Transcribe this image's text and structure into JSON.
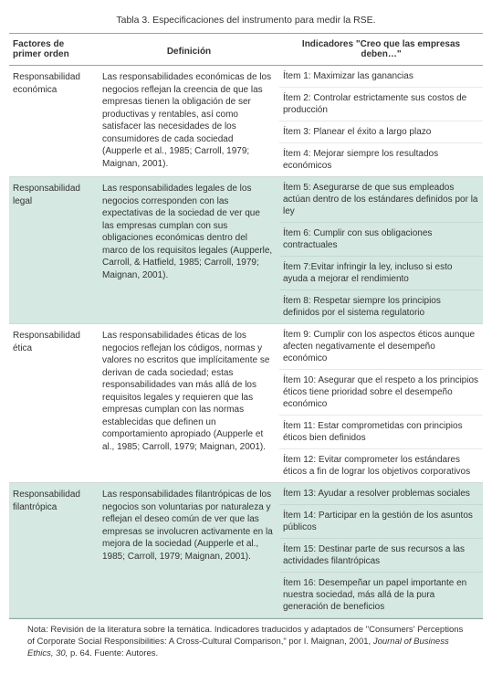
{
  "caption": "Tabla 3. Especificaciones del instrumento para medir la RSE.",
  "headers": {
    "factor": "Factores de primer orden",
    "definition": "Definición",
    "items": "Indicadores \"Creo que las empresas deben…\""
  },
  "rows": [
    {
      "factor": "Responsabilidad económica",
      "definition": "Las responsabilidades económicas de los negocios reflejan la creencia de que las empresas tienen la obligación de ser productivas y rentables, así como satisfacer las necesidades de los consumidores de cada sociedad (Aupperle et al., 1985; Carroll, 1979; Maignan, 2001).",
      "items": [
        "Ítem 1: Maximizar las ganancias",
        "Ítem 2: Controlar estrictamente sus costos de producción",
        "Ítem 3: Planear el éxito a largo plazo",
        "Ítem 4: Mejorar siempre los resultados económicos"
      ],
      "alt": false
    },
    {
      "factor": "Responsabilidad legal",
      "definition": "Las responsabilidades legales de los negocios corresponden con las expectativas de la sociedad de ver que las empresas cumplan con sus obligaciones económicas dentro del marco de los requisitos legales (Aupperle, Carroll, & Hatfield, 1985; Carroll, 1979; Maignan, 2001).",
      "items": [
        "Ítem 5: Asegurarse de que sus empleados actúan dentro de los estándares definidos por la ley",
        "Ítem 6: Cumplir con sus obligaciones contractuales",
        "Ítem 7:Evitar infringir la ley, incluso si esto ayuda a mejorar el rendimiento",
        "Ítem 8: Respetar siempre los principios definidos por el sistema regulatorio"
      ],
      "alt": true
    },
    {
      "factor": "Responsabilidad ética",
      "definition": "Las responsabilidades éticas de los negocios reflejan los códigos, normas y valores no escritos que implícitamente se derivan de cada sociedad; estas responsabilidades van más allá de los requisitos legales y requieren que las empresas cumplan con las normas establecidas que definen un comportamiento apropiado (Aupperle et al., 1985; Carroll, 1979; Maignan, 2001).",
      "items": [
        "Ítem 9: Cumplir con los aspectos éticos aunque afecten negativamente el desempeño económico",
        "Ítem 10: Asegurar que el respeto a los principios éticos tiene prioridad sobre el desempeño económico",
        "Ítem 11: Estar comprometidas con principios éticos bien definidos",
        "Ítem 12: Evitar comprometer los estándares éticos a fin de lograr los objetivos corporativos"
      ],
      "alt": false
    },
    {
      "factor": "Responsabilidad filantrópica",
      "definition": "Las responsabilidades filantrópicas de los negocios son voluntarias por naturaleza y reflejan el deseo común de ver que las empresas se involucren activamente en la mejora de la sociedad (Aupperle et al., 1985; Carroll, 1979; Maignan, 2001).",
      "items": [
        "Ítem 13: Ayudar a resolver problemas sociales",
        "Ítem 14: Participar en la gestión de los asuntos públicos",
        "Ítem 15: Destinar parte de sus recursos a las actividades filantrópicas",
        "Ítem 16: Desempeñar un papel importante en nuestra sociedad, más allá de la pura generación de beneficios"
      ],
      "alt": true
    }
  ],
  "footer": {
    "prefix": "Nota: Revisión de la literatura sobre la temática. Indicadores traducidos y adaptados de \"Consumers' Perceptions of Corporate Social Responsibilities: A Cross-Cultural Comparison,\" por I. Maignan, 2001, ",
    "italic": "Journal of Business Ethics, 30,",
    "suffix": " p. 64. Fuente: Autores."
  },
  "colors": {
    "alt_row_bg": "#d5e8e2",
    "border": "#8fa8a0",
    "text": "#333333"
  }
}
